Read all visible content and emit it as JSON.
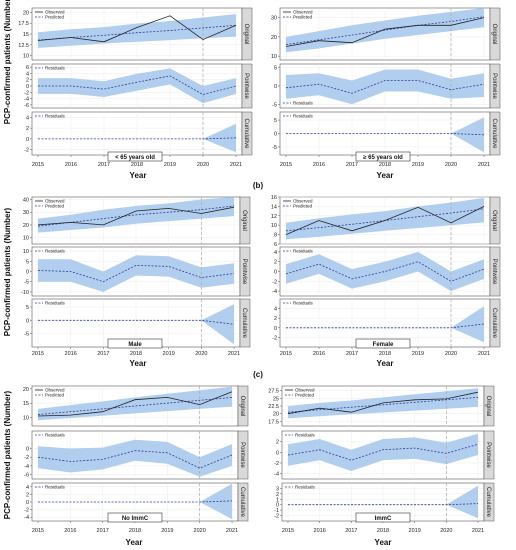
{
  "figure": {
    "y_axis_label": "PCP-confirmed patients (Number)",
    "panel_labels": [
      "(b)",
      "(c)"
    ],
    "facet_labels": [
      "Original",
      "Pointwise",
      "Cumulative"
    ],
    "legend": {
      "observed": "Observed",
      "predicted": "Predicted",
      "residuals": "Residuals"
    },
    "x_axis_label": "Year",
    "colors": {
      "band": "#a9c9ec",
      "observed": "#222222",
      "predicted": "#2f3f9e",
      "vline": "#aaaaaa",
      "strip": "#d9d9d9"
    }
  },
  "chart_data": [
    {
      "type": "line",
      "group_label": "< 65 years old",
      "x": [
        2015,
        2016,
        2017,
        2018,
        2019,
        2020,
        2021
      ],
      "intervention_x": 2020,
      "original": {
        "ylim": [
          9,
          21
        ],
        "yticks": [
          10.0,
          12.5,
          15.0,
          17.5,
          20.0
        ],
        "observed": [
          13.5,
          14.2,
          13.2,
          16.5,
          19.2,
          13.7,
          17.0
        ],
        "predicted": [
          13.6,
          14.2,
          14.7,
          15.3,
          15.8,
          16.4,
          17.0
        ],
        "band_low": [
          11.8,
          12.3,
          12.8,
          13.2,
          13.6,
          14.0,
          14.4
        ],
        "band_high": [
          15.4,
          16.1,
          16.6,
          17.4,
          18.0,
          18.8,
          19.6
        ]
      },
      "pointwise": {
        "ylim": [
          -7,
          7
        ],
        "yticks": [
          -6,
          -4,
          -2,
          0,
          2,
          4,
          6
        ],
        "residuals": [
          0,
          0,
          -1,
          1.2,
          3.2,
          -2.7,
          0
        ],
        "band_low": [
          -2.5,
          -2.5,
          -3.5,
          -1.5,
          0.5,
          -5.5,
          -2.5
        ],
        "band_high": [
          2.5,
          2.5,
          1.5,
          3.9,
          5.6,
          0.0,
          2.5
        ]
      },
      "cumulative": {
        "ylim": [
          -3,
          5
        ],
        "yticks": [
          -2,
          0,
          2,
          4
        ],
        "residuals": [
          0,
          0,
          0,
          0,
          0,
          0,
          0.2
        ],
        "band_low": [
          0,
          0,
          0,
          0,
          0,
          0,
          -2.5
        ],
        "band_high": [
          0,
          0,
          0,
          0,
          0,
          0,
          2.8
        ]
      }
    },
    {
      "type": "line",
      "group_label": "≥ 65 years old",
      "x": [
        2015,
        2016,
        2017,
        2018,
        2019,
        2020,
        2021
      ],
      "intervention_x": 2020,
      "original": {
        "ylim": [
          8,
          35
        ],
        "yticks": [
          10,
          20,
          30
        ],
        "observed": [
          15,
          18,
          17,
          24,
          26,
          26,
          30
        ],
        "predicted": [
          16,
          18.5,
          21,
          23.5,
          26,
          28,
          30.5
        ],
        "band_low": [
          12,
          14,
          16.5,
          19,
          21,
          23,
          25
        ],
        "band_high": [
          20,
          23,
          26,
          28.5,
          31,
          33,
          35
        ]
      },
      "pointwise": {
        "ylim": [
          -6,
          6
        ],
        "yticks": [
          -5,
          0,
          5
        ],
        "residuals": [
          -0.5,
          0.5,
          -2,
          1.5,
          1.5,
          -1.0,
          0.5
        ],
        "band_low": [
          -3.5,
          -2.5,
          -5,
          -1.5,
          -1.5,
          -3.5,
          -3.0
        ],
        "band_high": [
          3,
          3.5,
          1.5,
          4.5,
          4.5,
          2.0,
          3.5
        ]
      },
      "cumulative": {
        "ylim": [
          -8,
          8
        ],
        "yticks": [
          -5,
          0,
          5
        ],
        "residuals": [
          0,
          0,
          0,
          0,
          0,
          0,
          -0.5
        ],
        "band_low": [
          0,
          0,
          0,
          0,
          0,
          0,
          -7
        ],
        "band_high": [
          0,
          0,
          0,
          0,
          0,
          0,
          6
        ]
      }
    },
    {
      "type": "line",
      "group_label": "Male",
      "x": [
        2015,
        2016,
        2017,
        2018,
        2019,
        2020,
        2021
      ],
      "intervention_x": 2020,
      "original": {
        "ylim": [
          5,
          42
        ],
        "yticks": [
          10,
          20,
          30,
          40
        ],
        "observed": [
          20,
          22,
          20,
          31,
          33,
          29,
          34
        ],
        "predicted": [
          19,
          22,
          25,
          28,
          30,
          32,
          35
        ],
        "band_low": [
          14,
          16,
          18,
          21,
          23,
          25,
          27
        ],
        "band_high": [
          25,
          28,
          32,
          35,
          37,
          40,
          42
        ]
      },
      "pointwise": {
        "ylim": [
          -12,
          12
        ],
        "yticks": [
          -10,
          -5,
          0,
          5,
          10
        ],
        "residuals": [
          0.5,
          0,
          -5,
          3,
          2.5,
          -3,
          -1
        ],
        "band_low": [
          -5,
          -5,
          -10,
          -2,
          -2.5,
          -8,
          -6
        ],
        "band_high": [
          6,
          6,
          0,
          8,
          7.5,
          2,
          4
        ]
      },
      "cumulative": {
        "ylim": [
          -10,
          8
        ],
        "yticks": [
          -5,
          0,
          5
        ],
        "residuals": [
          0,
          0,
          0,
          0,
          0,
          0,
          -1.5
        ],
        "band_low": [
          0,
          0,
          0,
          0,
          0,
          0,
          -9
        ],
        "band_high": [
          0,
          0,
          0,
          0,
          0,
          0,
          6
        ]
      }
    },
    {
      "type": "line",
      "group_label": "Female",
      "x": [
        2015,
        2016,
        2017,
        2018,
        2019,
        2020,
        2021
      ],
      "intervention_x": 2020,
      "original": {
        "ylim": [
          6,
          16
        ],
        "yticks": [
          6,
          8,
          10,
          12,
          14,
          16
        ],
        "observed": [
          8.0,
          11.0,
          8.8,
          11.0,
          13.8,
          10.5,
          14.0
        ],
        "predicted": [
          8.8,
          9.5,
          10.2,
          11.0,
          11.8,
          12.6,
          13.5
        ],
        "band_low": [
          7.0,
          7.5,
          8.2,
          8.8,
          9.4,
          10.0,
          10.6
        ],
        "band_high": [
          10.5,
          11.5,
          12.3,
          13.0,
          14.0,
          14.8,
          15.8
        ]
      },
      "pointwise": {
        "ylim": [
          -5,
          5
        ],
        "yticks": [
          -4,
          -2,
          0,
          2,
          4
        ],
        "residuals": [
          -0.5,
          1.5,
          -1.5,
          0,
          2,
          -2,
          0.5
        ],
        "band_low": [
          -2.5,
          -0.5,
          -3.5,
          -2,
          0,
          -4,
          -1.5
        ],
        "band_high": [
          1.5,
          3.5,
          0.5,
          2,
          4,
          0,
          2.5
        ]
      },
      "cumulative": {
        "ylim": [
          -4,
          6
        ],
        "yticks": [
          -2,
          0,
          2,
          4
        ],
        "residuals": [
          0,
          0,
          0,
          0,
          0,
          0,
          0.8
        ],
        "band_low": [
          0,
          0,
          0,
          0,
          0,
          0,
          -3
        ],
        "band_high": [
          0,
          0,
          0,
          0,
          0,
          0,
          4.5
        ]
      }
    },
    {
      "type": "line",
      "group_label": "No ImmC",
      "x": [
        2015,
        2016,
        2017,
        2018,
        2019,
        2020,
        2021
      ],
      "intervention_x": 2020,
      "original": {
        "ylim": [
          7,
          21
        ],
        "yticks": [
          10,
          15,
          20
        ],
        "observed": [
          10.5,
          10.8,
          12.0,
          16.2,
          17.0,
          14.5,
          19.0
        ],
        "predicted": [
          11.0,
          12.0,
          13.0,
          14.0,
          15.0,
          16.0,
          17.0
        ],
        "band_low": [
          9.0,
          9.8,
          10.6,
          11.4,
          12.2,
          13.0,
          13.8
        ],
        "band_high": [
          13.0,
          14.3,
          15.6,
          17.0,
          18.3,
          19.5,
          20.8
        ]
      },
      "pointwise": {
        "ylim": [
          -7,
          4
        ],
        "yticks": [
          -6,
          -4,
          -2,
          0
        ],
        "residuals": [
          -2.0,
          -3.0,
          -2.5,
          -0.5,
          -1.0,
          -4.5,
          -1.5
        ],
        "band_low": [
          -4.5,
          -5.5,
          -4.8,
          -2.8,
          -3.5,
          -6.5,
          -4.0
        ],
        "band_high": [
          0.5,
          0.0,
          0.2,
          2.0,
          1.5,
          -2.0,
          1.0
        ]
      },
      "cumulative": {
        "ylim": [
          -5,
          5
        ],
        "yticks": [
          -4,
          -2,
          0,
          2,
          4
        ],
        "residuals": [
          0,
          0,
          0,
          0,
          0,
          0,
          0.3
        ],
        "band_low": [
          0,
          0,
          0,
          0,
          0,
          0,
          -4.5
        ],
        "band_high": [
          0,
          0,
          0,
          0,
          0,
          0,
          4.8
        ]
      }
    },
    {
      "type": "line",
      "group_label": "ImmC",
      "x": [
        2015,
        2016,
        2017,
        2018,
        2019,
        2020,
        2021
      ],
      "intervention_x": 2020,
      "original": {
        "ylim": [
          16,
          29
        ],
        "yticks": [
          17.5,
          20.0,
          22.5,
          25.0,
          27.5
        ],
        "observed": [
          20.0,
          21.8,
          20.5,
          23.5,
          24.5,
          24.8,
          27.0
        ],
        "predicted": [
          20.5,
          21.3,
          22.1,
          22.9,
          23.7,
          24.5,
          25.3
        ],
        "band_low": [
          18.5,
          19.2,
          19.8,
          20.4,
          21.0,
          21.6,
          22.2
        ],
        "band_high": [
          22.5,
          23.5,
          24.3,
          25.3,
          26.3,
          27.3,
          28.3
        ]
      },
      "pointwise": {
        "ylim": [
          -5,
          4
        ],
        "yticks": [
          -4,
          -2,
          0,
          2
        ],
        "residuals": [
          -0.5,
          0.5,
          -1.5,
          0.5,
          0.8,
          -0.2,
          1.5
        ],
        "band_low": [
          -2.5,
          -1.5,
          -3.5,
          -1.5,
          -1.2,
          -2.2,
          -0.5
        ],
        "band_high": [
          1.5,
          2.5,
          0.5,
          2.5,
          2.8,
          1.8,
          3.5
        ]
      },
      "cumulative": {
        "ylim": [
          -3,
          4
        ],
        "yticks": [
          -2,
          -1,
          0,
          1,
          2,
          3
        ],
        "residuals": [
          0,
          0,
          0,
          0,
          0,
          0,
          0.2
        ],
        "band_low": [
          0,
          0,
          0,
          0,
          0,
          0,
          -2.5
        ],
        "band_high": [
          0,
          0,
          0,
          0,
          0,
          0,
          3.5
        ]
      }
    }
  ]
}
